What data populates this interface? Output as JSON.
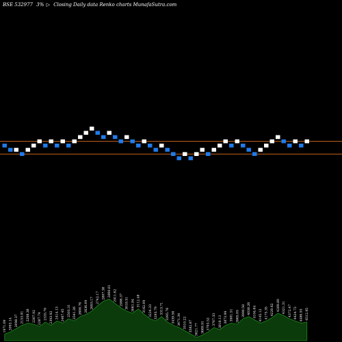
{
  "header": {
    "symbol": "BSE 532977",
    "change": "3%",
    "arrow": "▷",
    "description": "Closing Daily data Renko charts MunafaSutra.com"
  },
  "colors": {
    "background": "#000000",
    "up_brick": "#ffffff",
    "down_brick": "#1e7bea",
    "reference_line": "#c8641e",
    "volume_fill": "#0b3a0b",
    "volume_stroke": "#1e8a1e",
    "text": "#ffffff"
  },
  "chart_data": {
    "type": "renko",
    "title": "BSE 532977 3% ▷ Closing Daily data Renko charts MunafaSutra.com",
    "brick_level_unit": "brick",
    "reference_lines": [
      1.0,
      -2.0
    ],
    "bricks": [
      {
        "level": 0,
        "dir": "down"
      },
      {
        "level": -1,
        "dir": "down"
      },
      {
        "level": -1,
        "dir": "up"
      },
      {
        "level": -2,
        "dir": "down"
      },
      {
        "level": -1,
        "dir": "up"
      },
      {
        "level": 0,
        "dir": "up"
      },
      {
        "level": 1,
        "dir": "up"
      },
      {
        "level": 0,
        "dir": "down"
      },
      {
        "level": 1,
        "dir": "up"
      },
      {
        "level": 0,
        "dir": "down"
      },
      {
        "level": 1,
        "dir": "up"
      },
      {
        "level": 0,
        "dir": "down"
      },
      {
        "level": 1,
        "dir": "up"
      },
      {
        "level": 2,
        "dir": "up"
      },
      {
        "level": 3,
        "dir": "up"
      },
      {
        "level": 4,
        "dir": "up"
      },
      {
        "level": 3,
        "dir": "down"
      },
      {
        "level": 2,
        "dir": "down"
      },
      {
        "level": 3,
        "dir": "up"
      },
      {
        "level": 2,
        "dir": "down"
      },
      {
        "level": 1,
        "dir": "down"
      },
      {
        "level": 2,
        "dir": "up"
      },
      {
        "level": 1,
        "dir": "down"
      },
      {
        "level": 0,
        "dir": "down"
      },
      {
        "level": 1,
        "dir": "up"
      },
      {
        "level": 0,
        "dir": "down"
      },
      {
        "level": -1,
        "dir": "down"
      },
      {
        "level": 0,
        "dir": "up"
      },
      {
        "level": -1,
        "dir": "down"
      },
      {
        "level": -2,
        "dir": "down"
      },
      {
        "level": -3,
        "dir": "down"
      },
      {
        "level": -2,
        "dir": "up"
      },
      {
        "level": -3,
        "dir": "down"
      },
      {
        "level": -2,
        "dir": "up"
      },
      {
        "level": -1,
        "dir": "up"
      },
      {
        "level": -2,
        "dir": "down"
      },
      {
        "level": -1,
        "dir": "up"
      },
      {
        "level": 0,
        "dir": "up"
      },
      {
        "level": 1,
        "dir": "up"
      },
      {
        "level": 0,
        "dir": "down"
      },
      {
        "level": 1,
        "dir": "up"
      },
      {
        "level": 0,
        "dir": "down"
      },
      {
        "level": -1,
        "dir": "down"
      },
      {
        "level": -2,
        "dir": "down"
      },
      {
        "level": -1,
        "dir": "up"
      },
      {
        "level": 0,
        "dir": "up"
      },
      {
        "level": 1,
        "dir": "up"
      },
      {
        "level": 2,
        "dir": "up"
      },
      {
        "level": 1,
        "dir": "down"
      },
      {
        "level": 0,
        "dir": "down"
      },
      {
        "level": 1,
        "dir": "up"
      },
      {
        "level": 0,
        "dir": "down"
      },
      {
        "level": 1,
        "dir": "up"
      }
    ],
    "volume": {
      "values": [
        6,
        8,
        11,
        14,
        16,
        15,
        13,
        17,
        14,
        18,
        16,
        20,
        18,
        22,
        24,
        27,
        32,
        36,
        38,
        34,
        30,
        27,
        25,
        29,
        24,
        20,
        18,
        22,
        17,
        14,
        12,
        9,
        6,
        3,
        5,
        8,
        12,
        10,
        14,
        16,
        15,
        20,
        22,
        19,
        16,
        18,
        21,
        25,
        23,
        20,
        18,
        16,
        17
      ],
      "labels": [
        "1971.09",
        "2093.14",
        "2098.37",
        "2153.91",
        "2208.38",
        "2267.92",
        "2287.74",
        "2335.70",
        "2393.92",
        "2414.13",
        "2467.45",
        "2503.31",
        "2541.26",
        "2608.76",
        "2636.09",
        "2693.17",
        "2742.17",
        "2807.38",
        "2860.81",
        "2911.62",
        "2986.37",
        "3018.51",
        "3061.84",
        "3112.48",
        "3162.09",
        "3224.33",
        "3293.79",
        "3313.71",
        "3395.76",
        "3439.56",
        "3471.34",
        "3510.22",
        "3582.87",
        "3621.77",
        "3689.91",
        "3703.52",
        "3767.33",
        "3818.13",
        "3873.99",
        "3901.51",
        "3965.05",
        "3990.58",
        "4038.26",
        "4104.64",
        "4145.12",
        "4175.35",
        "4220.62",
        "4289.80",
        "4321.31",
        "4372.47",
        "4424.72",
        "4486.93",
        "4512.95"
      ]
    }
  }
}
